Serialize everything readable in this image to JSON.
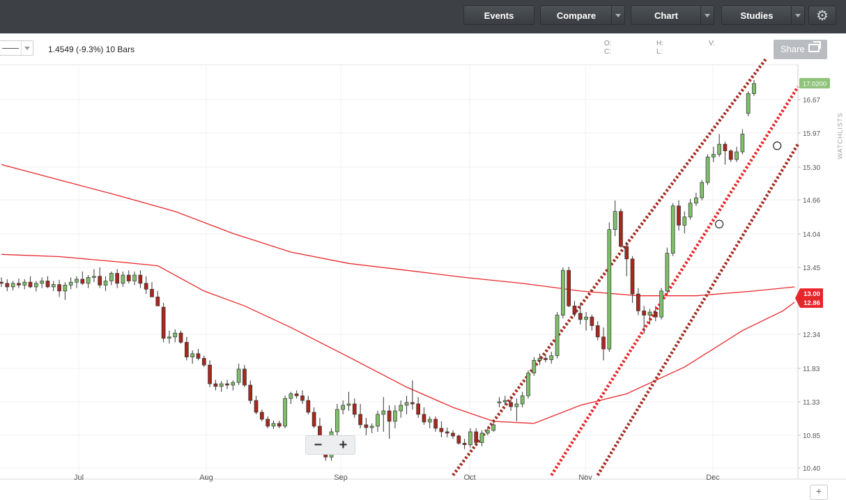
{
  "toolbar": {
    "events_label": "Events",
    "compare_label": "Compare",
    "chart_label": "Chart",
    "studies_label": "Studies",
    "settings_icon": "gear-icon"
  },
  "info": {
    "measurement": "1.4549 (-9.3%) 10 Bars",
    "o_label": "O:",
    "c_label": "C:",
    "h_label": "H:",
    "l_label": "L:",
    "v_label": "V:",
    "share_label": "Share",
    "share_icon": "share-icon"
  },
  "side": {
    "watchlists_label": "WATCHLISTS"
  },
  "zoom": {
    "minus_label": "−",
    "plus_label": "+"
  },
  "colors": {
    "up": "#7fbf6a",
    "down": "#a6281e",
    "ma": "#e8262a",
    "channel_outer": "#a32b22",
    "channel_mid": "#e8262a",
    "last_price_bg": "#8fc37b",
    "ma_tag_bg": "#e8262a"
  },
  "chart_data": {
    "type": "candlestick",
    "x_tick_labels": [
      "Jul",
      "Aug",
      "Sep",
      "Oct",
      "Nov",
      "Dec"
    ],
    "y_tick_labels": [
      "16.67",
      "15.97",
      "15.30",
      "14.66",
      "14.04",
      "13.45",
      "12.34",
      "11.83",
      "11.33",
      "10.85",
      "10.40"
    ],
    "ylim": [
      10.4,
      17.25
    ],
    "last_price": "17.0200",
    "ma_tags": [
      "13.00",
      "12.86"
    ],
    "candles": [
      [
        13.2,
        13.28,
        13.12,
        13.18
      ],
      [
        13.18,
        13.25,
        13.05,
        13.12
      ],
      [
        13.12,
        13.22,
        13.06,
        13.18
      ],
      [
        13.18,
        13.26,
        13.1,
        13.15
      ],
      [
        13.15,
        13.25,
        13.08,
        13.2
      ],
      [
        13.2,
        13.3,
        13.1,
        13.12
      ],
      [
        13.12,
        13.22,
        13.04,
        13.18
      ],
      [
        13.18,
        13.28,
        13.1,
        13.22
      ],
      [
        13.22,
        13.3,
        13.1,
        13.12
      ],
      [
        13.12,
        13.22,
        13.05,
        13.16
      ],
      [
        13.16,
        13.24,
        12.95,
        13.05
      ],
      [
        13.05,
        13.2,
        12.9,
        13.15
      ],
      [
        13.15,
        13.28,
        13.08,
        13.2
      ],
      [
        13.2,
        13.3,
        13.1,
        13.25
      ],
      [
        13.25,
        13.38,
        13.15,
        13.18
      ],
      [
        13.18,
        13.32,
        13.1,
        13.28
      ],
      [
        13.28,
        13.42,
        13.2,
        13.3
      ],
      [
        13.3,
        13.45,
        13.1,
        13.15
      ],
      [
        13.15,
        13.3,
        13.05,
        13.22
      ],
      [
        13.22,
        13.38,
        13.15,
        13.35
      ],
      [
        13.35,
        13.42,
        13.1,
        13.18
      ],
      [
        13.18,
        13.38,
        13.12,
        13.32
      ],
      [
        13.32,
        13.4,
        13.18,
        13.22
      ],
      [
        13.22,
        13.38,
        13.15,
        13.32
      ],
      [
        13.32,
        13.4,
        13.1,
        13.18
      ],
      [
        13.18,
        13.3,
        13.0,
        13.08
      ],
      [
        13.08,
        13.2,
        12.95,
        12.95
      ],
      [
        12.95,
        13.05,
        12.8,
        12.8
      ],
      [
        12.78,
        12.85,
        12.22,
        12.28
      ],
      [
        12.28,
        12.4,
        12.2,
        12.3
      ],
      [
        12.3,
        12.42,
        12.22,
        12.36
      ],
      [
        12.36,
        12.4,
        12.2,
        12.22
      ],
      [
        12.22,
        12.3,
        11.95,
        12.0
      ],
      [
        12.0,
        12.1,
        11.9,
        12.05
      ],
      [
        12.05,
        12.12,
        11.95,
        11.98
      ],
      [
        11.98,
        12.02,
        11.85,
        11.88
      ],
      [
        11.88,
        11.95,
        11.55,
        11.6
      ],
      [
        11.6,
        11.66,
        11.5,
        11.56
      ],
      [
        11.56,
        11.64,
        11.48,
        11.6
      ],
      [
        11.6,
        11.66,
        11.52,
        11.58
      ],
      [
        11.58,
        11.65,
        11.5,
        11.62
      ],
      [
        11.62,
        11.9,
        11.58,
        11.82
      ],
      [
        11.82,
        11.88,
        11.55,
        11.58
      ],
      [
        11.58,
        11.65,
        11.3,
        11.35
      ],
      [
        11.35,
        11.42,
        11.15,
        11.18
      ],
      [
        11.18,
        11.22,
        11.05,
        11.08
      ],
      [
        11.08,
        11.12,
        10.95,
        10.98
      ],
      [
        10.98,
        11.06,
        10.94,
        11.02
      ],
      [
        11.02,
        11.06,
        10.95,
        10.98
      ],
      [
        10.98,
        11.42,
        10.95,
        11.38
      ],
      [
        11.38,
        11.48,
        11.3,
        11.45
      ],
      [
        11.45,
        11.5,
        11.38,
        11.42
      ],
      [
        11.42,
        11.5,
        11.3,
        11.35
      ],
      [
        11.35,
        11.42,
        11.15,
        11.18
      ],
      [
        11.18,
        11.25,
        10.95,
        10.98
      ],
      [
        10.98,
        11.1,
        10.6,
        10.62
      ],
      [
        10.62,
        10.8,
        10.5,
        10.55
      ],
      [
        10.55,
        10.95,
        10.5,
        10.9
      ],
      [
        10.9,
        11.3,
        10.85,
        11.22
      ],
      [
        11.22,
        11.35,
        11.15,
        11.28
      ],
      [
        11.28,
        11.48,
        11.2,
        11.3
      ],
      [
        11.3,
        11.38,
        11.1,
        11.15
      ],
      [
        11.15,
        11.3,
        10.95,
        11.0
      ],
      [
        11.0,
        11.1,
        10.85,
        10.96
      ],
      [
        10.96,
        11.02,
        10.88,
        10.98
      ],
      [
        10.98,
        11.2,
        10.9,
        11.15
      ],
      [
        11.15,
        11.4,
        10.9,
        11.2
      ],
      [
        11.2,
        11.28,
        10.8,
        11.05
      ],
      [
        11.05,
        11.28,
        10.95,
        11.2
      ],
      [
        11.2,
        11.35,
        11.1,
        11.28
      ],
      [
        11.28,
        11.42,
        11.15,
        11.32
      ],
      [
        11.32,
        11.65,
        11.22,
        11.3
      ],
      [
        11.3,
        11.4,
        11.1,
        11.15
      ],
      [
        11.15,
        11.25,
        11.0,
        11.04
      ],
      [
        11.04,
        11.12,
        10.95,
        11.08
      ],
      [
        11.08,
        11.12,
        10.9,
        10.95
      ],
      [
        10.95,
        11.05,
        10.82,
        10.9
      ],
      [
        10.9,
        10.96,
        10.82,
        10.88
      ],
      [
        10.88,
        10.92,
        10.8,
        10.84
      ],
      [
        10.84,
        10.86,
        10.72,
        10.74
      ],
      [
        10.74,
        10.8,
        10.66,
        10.72
      ],
      [
        10.72,
        10.95,
        10.68,
        10.9
      ],
      [
        10.9,
        10.95,
        10.7,
        10.75
      ],
      [
        10.75,
        10.92,
        10.7,
        10.88
      ],
      [
        10.88,
        10.95,
        10.85,
        10.92
      ],
      [
        10.92,
        11.05,
        10.9,
        11.0
      ],
      [
        11.32,
        11.4,
        11.25,
        11.33
      ],
      [
        11.33,
        11.42,
        11.28,
        11.35
      ],
      [
        11.32,
        11.38,
        11.2,
        11.26
      ],
      [
        11.26,
        11.38,
        11.05,
        11.3
      ],
      [
        11.3,
        11.48,
        11.25,
        11.42
      ],
      [
        11.42,
        11.8,
        11.38,
        11.76
      ],
      [
        11.76,
        12.0,
        11.72,
        11.95
      ],
      [
        11.95,
        12.05,
        11.88,
        11.98
      ],
      [
        11.98,
        12.04,
        11.92,
        11.96
      ],
      [
        11.96,
        12.08,
        11.9,
        12.02
      ],
      [
        12.02,
        12.7,
        11.98,
        12.65
      ],
      [
        12.65,
        13.45,
        12.6,
        13.4
      ],
      [
        13.4,
        13.46,
        12.78,
        12.8
      ],
      [
        12.8,
        12.88,
        12.62,
        12.68
      ],
      [
        12.68,
        12.85,
        12.5,
        12.58
      ],
      [
        12.58,
        12.7,
        12.4,
        12.62
      ],
      [
        12.62,
        12.66,
        12.4,
        12.48
      ],
      [
        12.48,
        12.55,
        12.25,
        12.3
      ],
      [
        12.3,
        12.45,
        11.95,
        12.12
      ],
      [
        12.12,
        14.25,
        12.08,
        14.12
      ],
      [
        14.12,
        14.65,
        14.0,
        14.45
      ],
      [
        14.45,
        14.5,
        13.8,
        13.82
      ],
      [
        13.82,
        13.9,
        13.3,
        13.6
      ],
      [
        13.6,
        13.65,
        12.85,
        13.0
      ],
      [
        13.0,
        13.1,
        12.65,
        12.72
      ],
      [
        12.72,
        12.8,
        12.35,
        12.65
      ],
      [
        12.65,
        12.75,
        12.5,
        12.7
      ],
      [
        12.7,
        12.8,
        12.55,
        12.62
      ],
      [
        12.62,
        13.1,
        12.58,
        13.05
      ],
      [
        13.05,
        13.8,
        13.0,
        13.7
      ],
      [
        13.7,
        14.6,
        13.65,
        14.55
      ],
      [
        14.55,
        14.65,
        14.1,
        14.2
      ],
      [
        14.2,
        14.45,
        14.05,
        14.35
      ],
      [
        14.35,
        14.68,
        14.3,
        14.6
      ],
      [
        14.6,
        14.8,
        14.55,
        14.7
      ],
      [
        14.7,
        15.05,
        14.65,
        15.0
      ],
      [
        15.0,
        15.55,
        14.95,
        15.5
      ],
      [
        15.5,
        15.7,
        15.4,
        15.55
      ],
      [
        15.55,
        15.95,
        15.5,
        15.75
      ],
      [
        15.75,
        15.8,
        15.35,
        15.62
      ],
      [
        15.62,
        15.65,
        15.4,
        15.45
      ],
      [
        15.45,
        15.7,
        15.4,
        15.6
      ],
      [
        15.6,
        16.05,
        15.55,
        15.95
      ],
      [
        16.38,
        16.85,
        16.32,
        16.8
      ],
      [
        16.8,
        17.1,
        16.75,
        17.02
      ]
    ]
  }
}
